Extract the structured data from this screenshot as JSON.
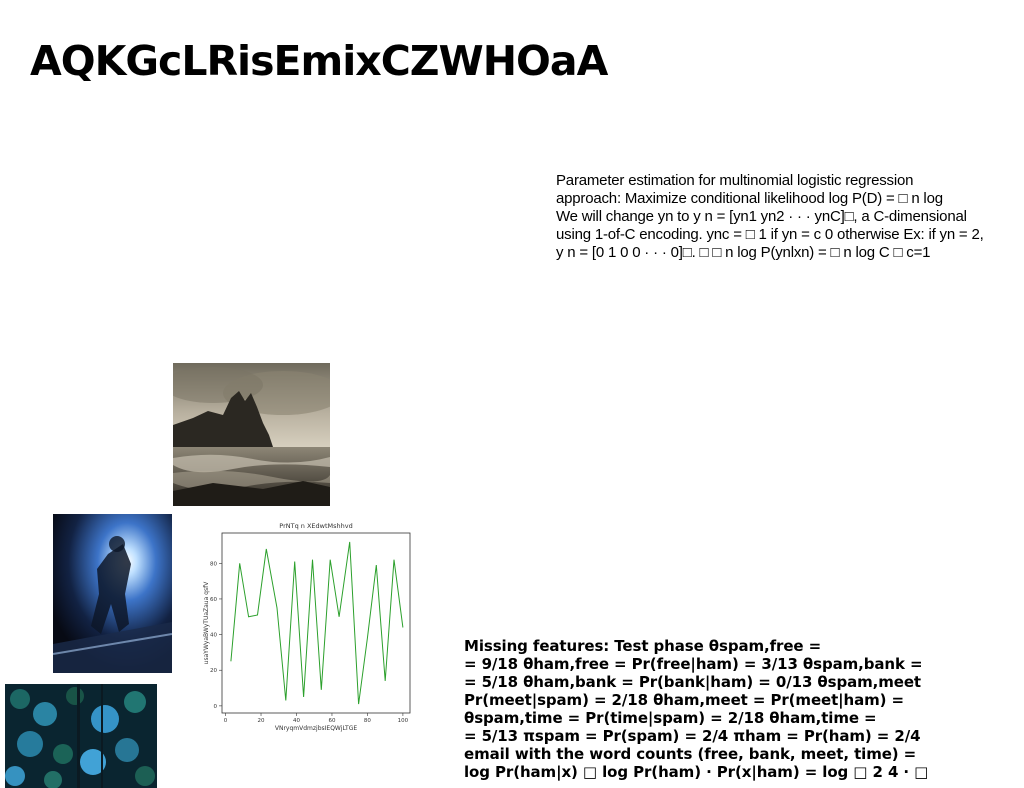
{
  "title": "AQKGcLRisEmixCZWHOaA",
  "paragraph_top": [
    "Parameter estimation for multinomial logistic regression",
    "approach: Maximize conditional likelihood log P(D) = □ n log",
    "We will change yn to y n = [yn1 yn2 · · · ynC]□, a C-dimensional",
    "using 1-of-C encoding. ync = □ 1 if yn = c 0 otherwise Ex: if yn = 2,",
    "y n = [0 1 0 0 · · · 0]□. □ □ n log P(ynlxn) = □ n log C □ c=1"
  ],
  "paragraph_bottom": [
    "Missing features: Test phase θspam,free =",
    "= 9/18 θham,free = Pr(free|ham) = 3/13 θspam,bank =",
    "= 5/18 θham,bank = Pr(bank|ham) = 0/13 θspam,meet",
    "Pr(meet|spam) = 2/18 θham,meet = Pr(meet|ham) =",
    "θspam,time = Pr(time|spam) = 2/18 θham,time =",
    "= 5/13 πspam = Pr(spam) = 2/4 πham = Pr(ham) = 2/4",
    "email with the word counts (free, bank, meet, time) =",
    "log Pr(ham|x) □ log Pr(ham) · Pr(x|ham) = log □ 2 4 · □"
  ],
  "images": {
    "landscape": "sepia-coastal-cliff-photo",
    "figure": "backlit-figure-photo",
    "foliage": "blue-green-foliage-photo"
  },
  "chart_data": {
    "type": "line",
    "title": "PrNTq n XEdwtMshhvd",
    "xlabel": "VNryqmVdmzjbsIEQWjLTGE",
    "ylabel": "usaYWyaBWyTUaZaua qsfV",
    "x": [
      3,
      8,
      13,
      18,
      23,
      29,
      34,
      39,
      44,
      49,
      54,
      59,
      64,
      70,
      75,
      80,
      85,
      90,
      95,
      100
    ],
    "y": [
      25,
      80,
      50,
      51,
      88,
      55,
      3,
      81,
      5,
      82,
      9,
      82,
      50,
      92,
      1,
      38,
      79,
      14,
      82,
      44
    ],
    "xticks": [
      0,
      20,
      40,
      60,
      80,
      100
    ],
    "yticks": [
      0,
      20,
      40,
      60,
      80
    ],
    "xlim": [
      -2,
      104
    ],
    "ylim": [
      -4,
      97
    ],
    "line_color": "#2ca02c",
    "grid": false
  }
}
